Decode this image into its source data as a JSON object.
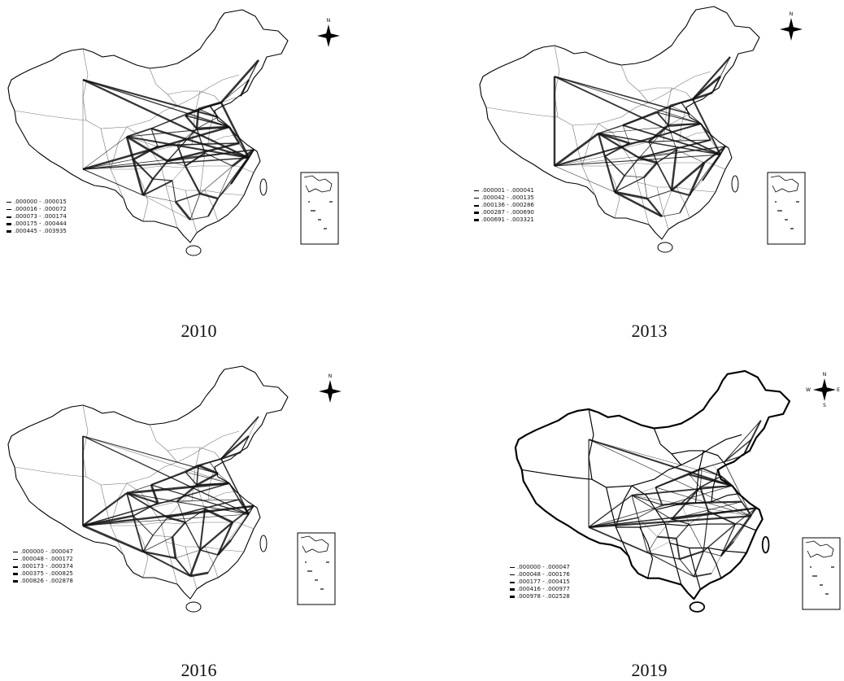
{
  "maps": [
    {
      "year": "2010",
      "legend": [
        ".000000 - .000015",
        ".000016 - .000072",
        ".000073 - .000174",
        ".000175 - .000444",
        ".000445 - .003935"
      ],
      "north_labels": [
        "N"
      ],
      "style": "light"
    },
    {
      "year": "2013",
      "legend": [
        ".000001 - .000041",
        ".000042 - .000135",
        ".000136 - .000286",
        ".000287 - .000690",
        ".000691 - .003321"
      ],
      "north_labels": [
        "N"
      ],
      "style": "light"
    },
    {
      "year": "2016",
      "legend": [
        ".000000 - .000047",
        ".000048 - .000172",
        ".000173 - .000374",
        ".000375 - .000825",
        ".000826 - .002878"
      ],
      "north_labels": [
        "N"
      ],
      "style": "light"
    },
    {
      "year": "2019",
      "legend": [
        ".000000 - .000047",
        ".000048 - .000176",
        ".000177 - .000415",
        ".000416 - .000977",
        ".000978 - .002528"
      ],
      "north_labels": [
        "N",
        "E",
        "S",
        "W"
      ],
      "style": "bold"
    }
  ]
}
